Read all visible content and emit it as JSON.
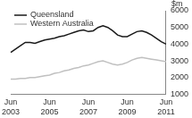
{
  "chart_data": {
    "type": "line",
    "y_label": "$m",
    "categories": [
      "Jun 2003",
      null,
      null,
      null,
      null,
      null,
      null,
      null,
      "Jun 2005",
      null,
      null,
      null,
      null,
      null,
      null,
      null,
      "Jun 2007",
      null,
      null,
      null,
      null,
      null,
      null,
      null,
      "Jun 2009",
      null,
      null,
      null,
      null,
      null,
      null,
      null,
      "Jun 2011"
    ],
    "series": [
      {
        "name": "Queensland",
        "color": "#1a1a1a",
        "values": [
          3500,
          3700,
          3900,
          4100,
          4100,
          4050,
          4150,
          4250,
          4300,
          4350,
          4450,
          4500,
          4600,
          4700,
          4800,
          4850,
          4750,
          4800,
          5000,
          5100,
          5000,
          4800,
          4550,
          4450,
          4450,
          4600,
          4750,
          4800,
          4700,
          4550,
          4350,
          4150,
          4000
        ]
      },
      {
        "name": "Western Australia",
        "color": "#c0c0c0",
        "values": [
          1900,
          1900,
          1950,
          1950,
          2000,
          2000,
          2050,
          2100,
          2150,
          2250,
          2300,
          2400,
          2450,
          2550,
          2600,
          2700,
          2750,
          2850,
          2950,
          3000,
          2900,
          2800,
          2750,
          2800,
          2900,
          3050,
          3150,
          3200,
          3150,
          3100,
          3050,
          3000,
          2950
        ]
      }
    ],
    "ylim": [
      1000,
      6000
    ],
    "yticks": [
      1000,
      2000,
      3000,
      4000,
      5000,
      6000
    ],
    "grid": false,
    "legend": "upper left"
  }
}
